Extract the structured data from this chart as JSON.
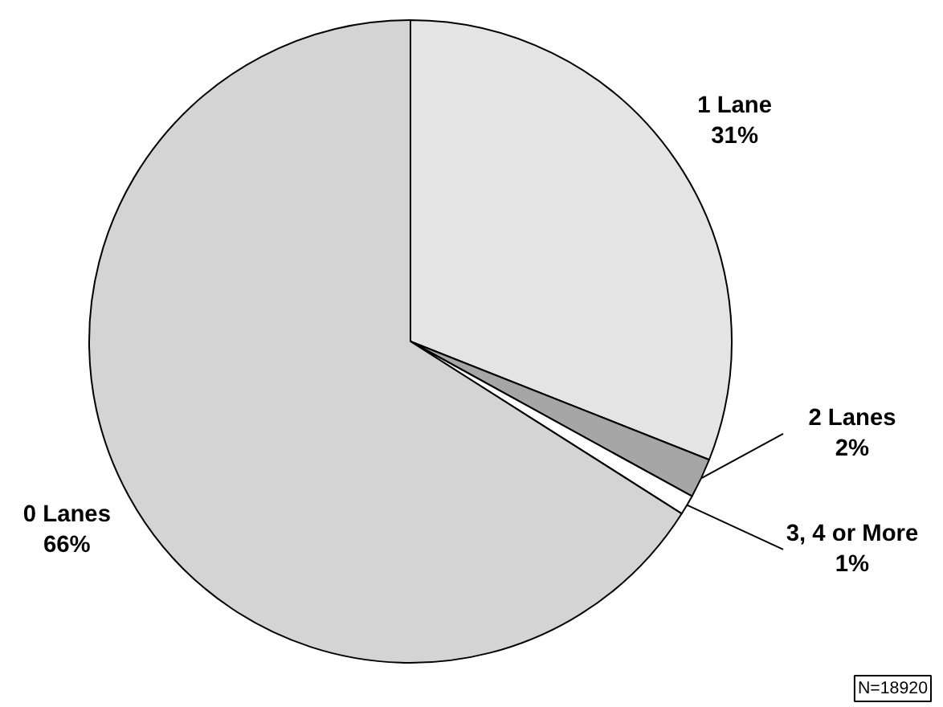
{
  "chart_data": {
    "type": "pie",
    "categories": [
      "1 Lane",
      "2 Lanes",
      "3, 4 or More",
      "0 Lanes"
    ],
    "values": [
      31,
      2,
      1,
      66
    ],
    "value_labels": [
      "31%",
      "2%",
      "1%",
      "66%"
    ],
    "colors": [
      "#e4e4e4",
      "#a6a6a6",
      "#ffffff",
      "#d4d4d4"
    ],
    "annotations": [
      "N=18920"
    ]
  }
}
